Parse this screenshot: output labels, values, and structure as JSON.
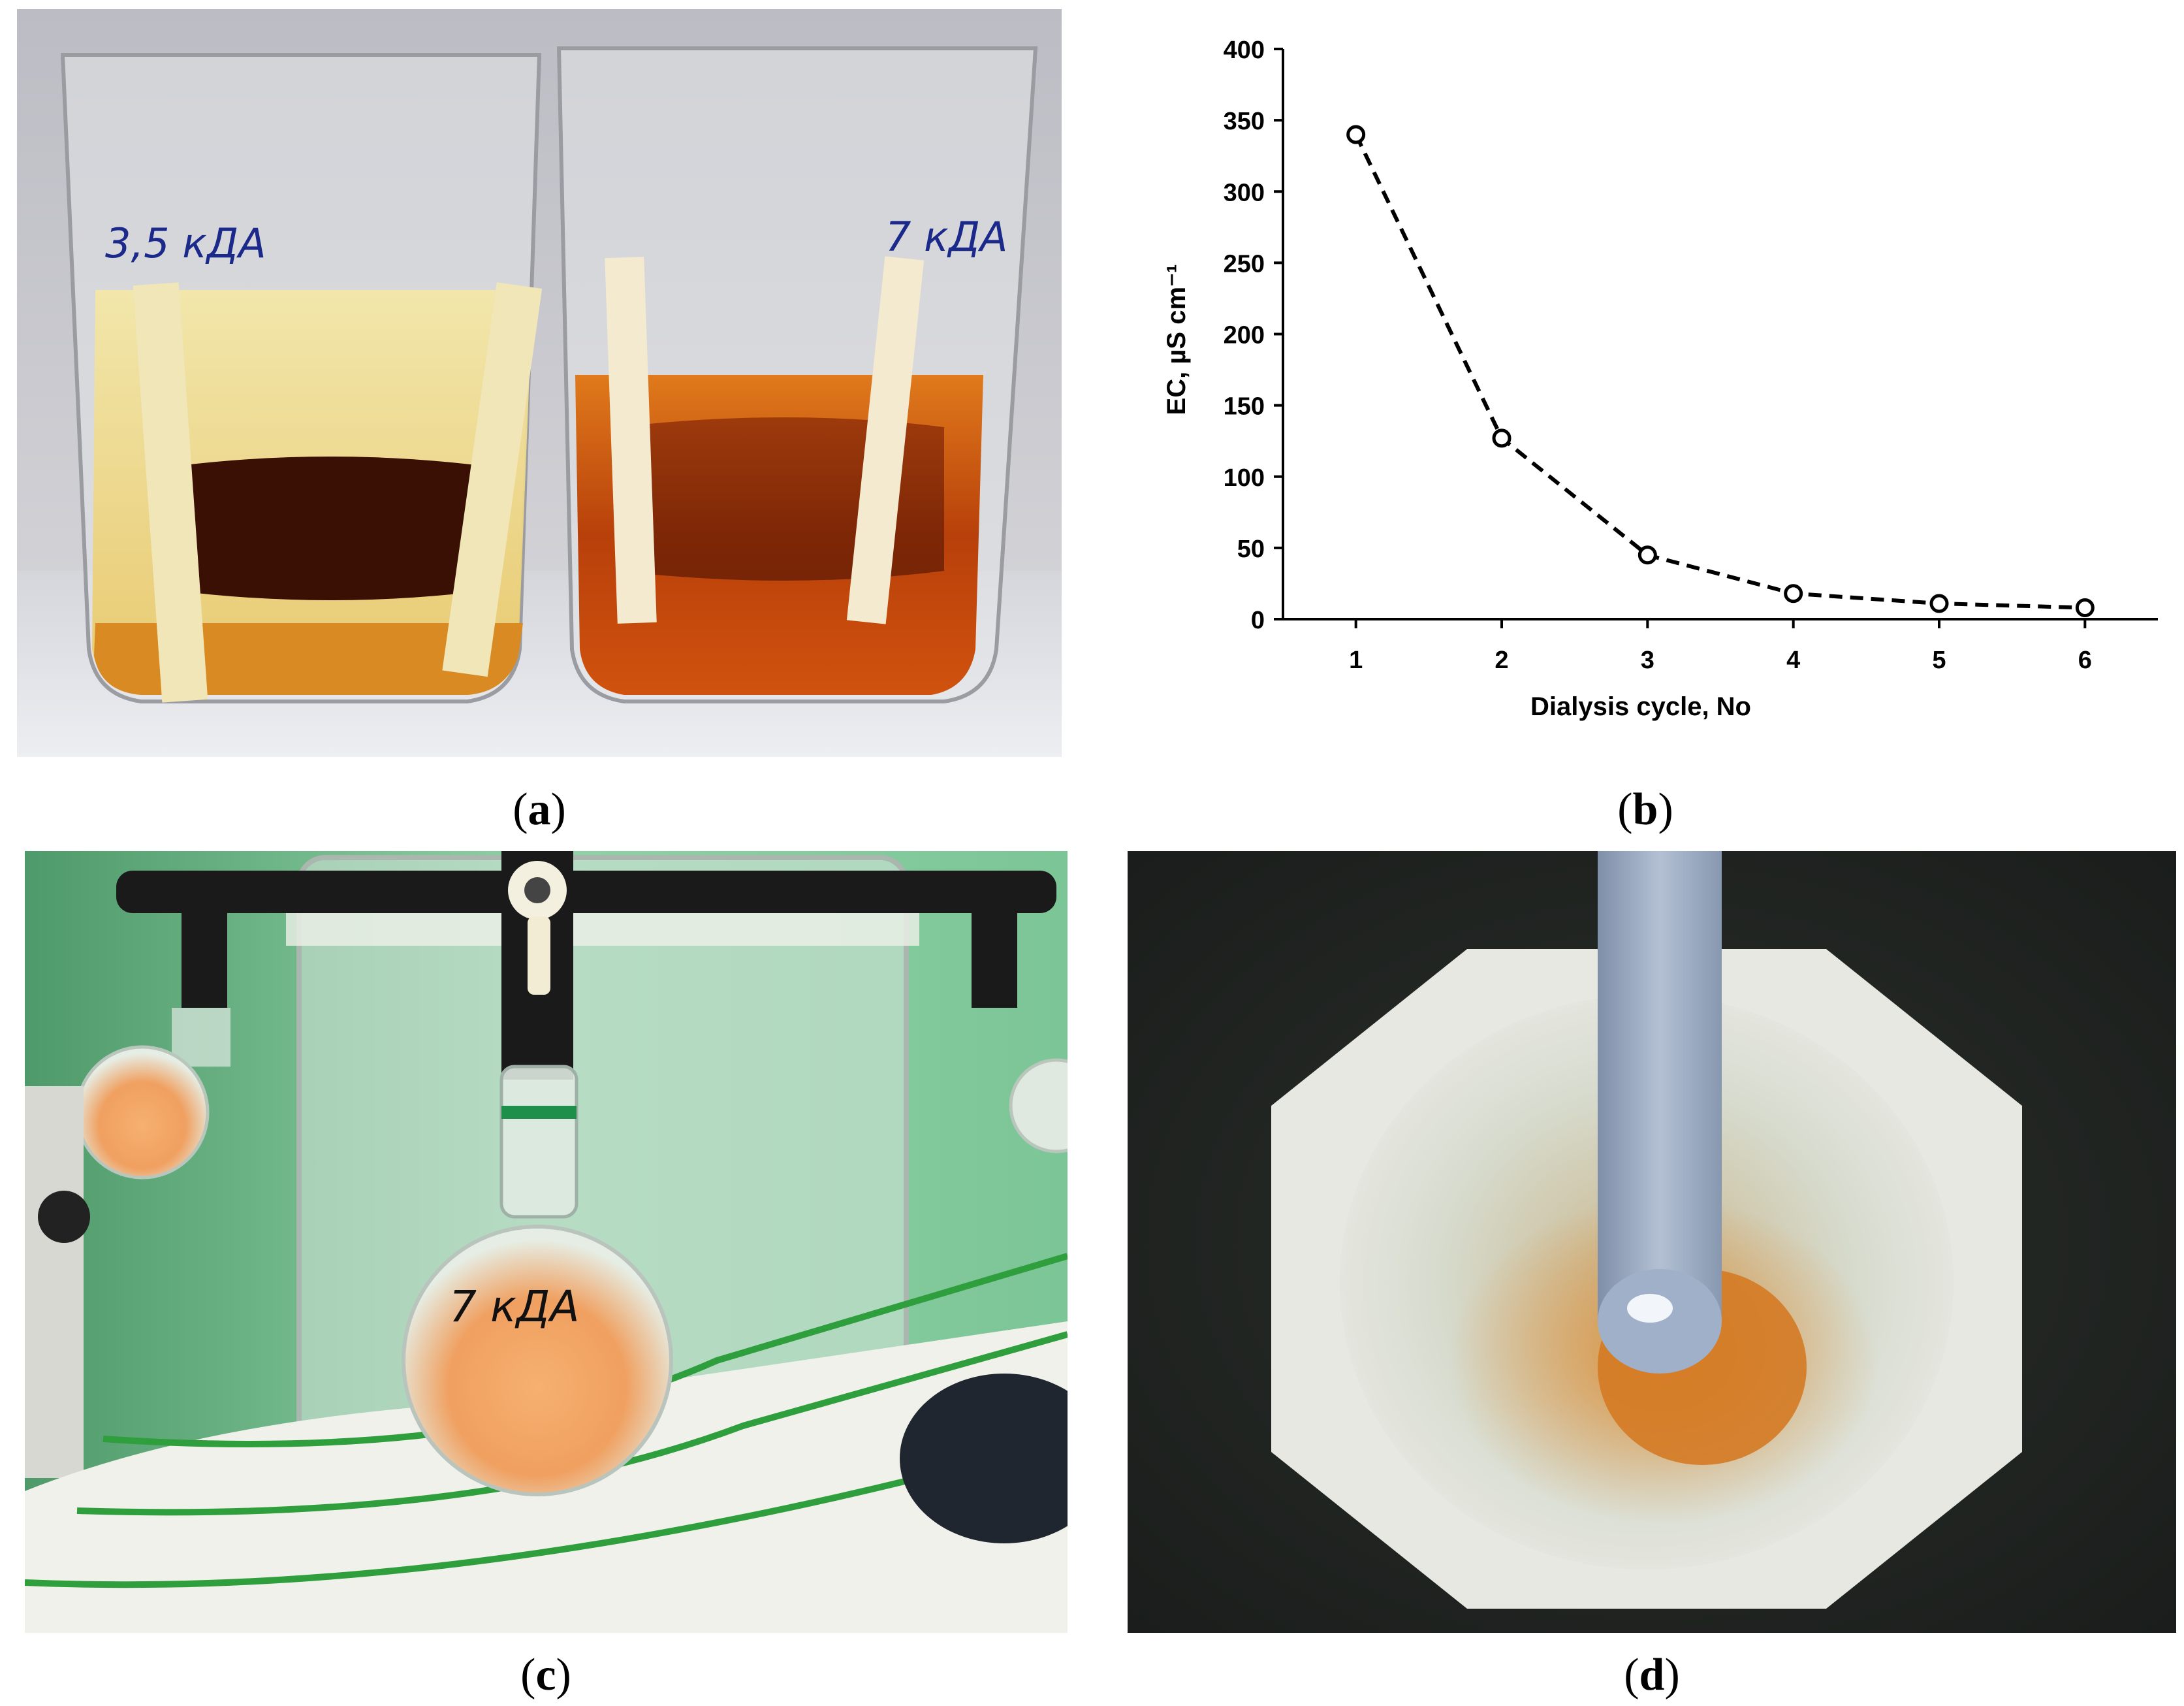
{
  "panels": {
    "a": {
      "caption_open": "(",
      "caption_letter": "a",
      "caption_close": ")",
      "beaker_left_label": "3,5 кДА",
      "beaker_right_label": "7 кДА"
    },
    "b": {
      "caption_open": "(",
      "caption_letter": "b",
      "caption_close": ")"
    },
    "c": {
      "caption_open": "(",
      "caption_letter": "c",
      "caption_close": ")",
      "flask_label": "7 кДА"
    },
    "d": {
      "caption_open": "(",
      "caption_letter": "d",
      "caption_close": ")"
    }
  },
  "chart_data": {
    "type": "line",
    "x": [
      1,
      2,
      3,
      4,
      5,
      6
    ],
    "y": [
      340,
      127,
      45,
      18,
      11,
      8
    ],
    "xlabel": "Dialysis cycle, No",
    "ylabel": "EC, µS cm⁻¹",
    "xlim": [
      0.5,
      6.5
    ],
    "ylim": [
      0,
      400
    ],
    "yticks": [
      0,
      50,
      100,
      150,
      200,
      250,
      300,
      350,
      400
    ],
    "xticks": [
      1,
      2,
      3,
      4,
      5,
      6
    ],
    "line_style": "dashed",
    "marker": "open-circle",
    "grid": false,
    "line_color": "#000000"
  }
}
